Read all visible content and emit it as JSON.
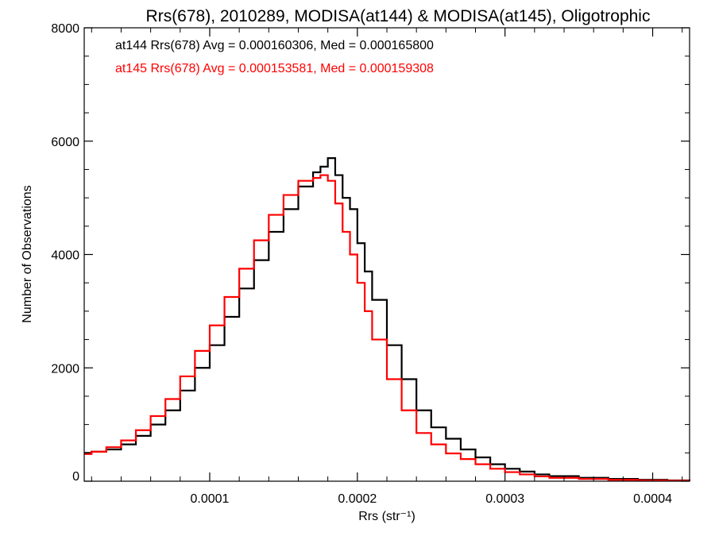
{
  "chart_data": {
    "type": "line",
    "title": "Rrs(678), 2010289, MODISA(at144) & MODISA(at145), Oligotrophic",
    "xlabel": "Rrs (str⁻¹)",
    "ylabel": "Number of Observations",
    "xlim": [
      1.5e-05,
      0.000425
    ],
    "ylim": [
      0,
      8000
    ],
    "xticks": [
      0.0001,
      0.0002,
      0.0003,
      0.0004
    ],
    "xtick_labels": [
      "0.0001",
      "0.0002",
      "0.0003",
      "0.0004"
    ],
    "yticks": [
      0,
      2000,
      4000,
      6000,
      8000
    ],
    "ytick_labels": [
      "0",
      "2000",
      "4000",
      "6000",
      "8000"
    ],
    "grid": false,
    "step": true,
    "annotations": [
      {
        "text": "at144 Rrs(678) Avg = 0.000160306, Med = 0.000165800",
        "color": "#000000"
      },
      {
        "text": "at145 Rrs(678) Avg = 0.000153581, Med = 0.000159308",
        "color": "#ff0000"
      }
    ],
    "series": [
      {
        "color": "#000000",
        "x": [
          1.5e-05,
          2e-05,
          3e-05,
          4e-05,
          5e-05,
          6e-05,
          7e-05,
          8e-05,
          9e-05,
          0.0001,
          0.00011,
          0.00012,
          0.00013,
          0.00014,
          0.00015,
          0.00016,
          0.00017,
          0.000175,
          0.00018,
          0.000185,
          0.00019,
          0.000195,
          0.0002,
          0.000205,
          0.00021,
          0.00022,
          0.00023,
          0.00024,
          0.00025,
          0.00026,
          0.00027,
          0.00028,
          0.00029,
          0.0003,
          0.00031,
          0.00032,
          0.00033,
          0.00035,
          0.00037,
          0.00039,
          0.00041,
          0.000425
        ],
        "y": [
          500,
          520,
          560,
          650,
          800,
          1000,
          1250,
          1600,
          2000,
          2400,
          2900,
          3400,
          3900,
          4400,
          4800,
          5200,
          5450,
          5550,
          5700,
          5400,
          5000,
          4800,
          4200,
          3700,
          3200,
          2400,
          1800,
          1250,
          950,
          750,
          560,
          420,
          300,
          220,
          170,
          120,
          90,
          60,
          40,
          25,
          15,
          10
        ]
      },
      {
        "color": "#ff0000",
        "x": [
          1.5e-05,
          2e-05,
          3e-05,
          4e-05,
          5e-05,
          6e-05,
          7e-05,
          8e-05,
          9e-05,
          0.0001,
          0.00011,
          0.00012,
          0.00013,
          0.00014,
          0.00015,
          0.00016,
          0.00017,
          0.000175,
          0.00018,
          0.000185,
          0.00019,
          0.000195,
          0.0002,
          0.000205,
          0.00021,
          0.00022,
          0.00023,
          0.00024,
          0.00025,
          0.00026,
          0.00027,
          0.00028,
          0.00029,
          0.0003,
          0.00031,
          0.00032,
          0.00033,
          0.00035,
          0.00037,
          0.00039,
          0.00041,
          0.000425
        ],
        "y": [
          480,
          520,
          600,
          720,
          900,
          1150,
          1450,
          1850,
          2300,
          2750,
          3250,
          3750,
          4250,
          4700,
          5050,
          5300,
          5350,
          5400,
          5300,
          4900,
          4400,
          4000,
          3500,
          3000,
          2500,
          1800,
          1250,
          850,
          650,
          490,
          390,
          300,
          220,
          160,
          120,
          85,
          60,
          40,
          25,
          15,
          10,
          8
        ]
      }
    ]
  }
}
